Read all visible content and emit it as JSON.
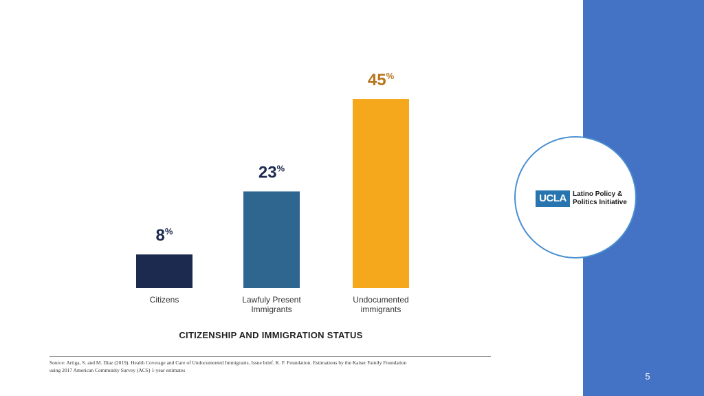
{
  "theme": {
    "sidebar_color": "#4472c4",
    "ucla_blue": "#2774ae",
    "circle_border": "#4a8fd0"
  },
  "logo": {
    "ucla": "UCLA",
    "line1": "Latino Policy &",
    "line2": "Politics Initiative"
  },
  "page_number": "5",
  "source": {
    "line1": "Source: Artiga, S. and M. Diaz (2019). Health Coverage and Care of Undocumented Immigrants. Issue brief. K. F. Foundation. Estimations by the Kaiser Family Foundation",
    "line2": "using 2017 American Community Survey (ACS) 1-year estimates"
  },
  "chart_data": {
    "type": "bar",
    "title": "",
    "xlabel": "CITIZENSHIP AND IMMIGRATION STATUS",
    "ylabel": "",
    "ylim": [
      0,
      50
    ],
    "grid": false,
    "categories": [
      [
        "Citizens"
      ],
      [
        "Lawfuly Present",
        "Immigrants"
      ],
      [
        "Undocumented",
        "immigrants"
      ]
    ],
    "values": [
      8,
      23,
      45
    ],
    "value_labels": [
      "8",
      "23",
      "45"
    ],
    "value_suffix": "%",
    "colors": [
      "#1b2a4e",
      "#2f6690",
      "#f5a81c"
    ],
    "label_colors": [
      "#1b2a4e",
      "#1b2a4e",
      "#b8741a"
    ],
    "text_color": "#333333"
  }
}
